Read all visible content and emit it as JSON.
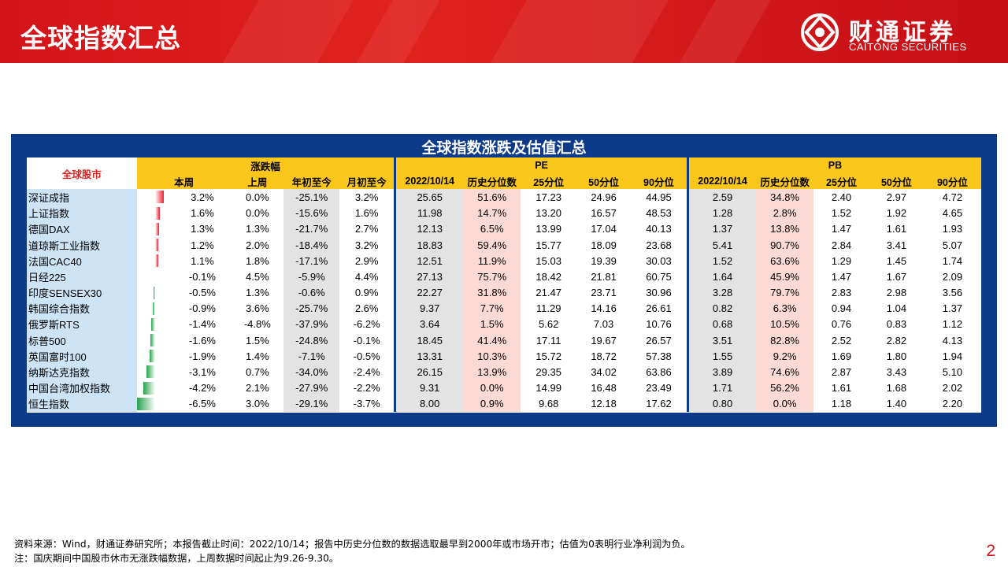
{
  "page_title": "全球指数汇总",
  "brand": {
    "name_cn": "财通证券",
    "name_en": "CAITONG SECURITIES"
  },
  "table_title": "全球指数涨跌及估值汇总",
  "headers": {
    "market": "全球股市",
    "change_group": "涨跌幅",
    "pe_group": "PE",
    "pb_group": "PB",
    "this_week": "本周",
    "last_week": "上周",
    "ytd": "年初至今",
    "mtd": "月初至今",
    "date": "2022/10/14",
    "hist_pct": "历史分位数",
    "p25": "25分位",
    "p50": "50分位",
    "p90": "90分位"
  },
  "rows": [
    {
      "name": "深证成指",
      "week_val": 3.2,
      "week": "3.2%",
      "last": "0.0%",
      "ytd": "-25.1%",
      "mtd": "3.2%",
      "pe": "25.65",
      "pe_pct": "51.6%",
      "pe25": "17.23",
      "pe50": "24.96",
      "pe90": "44.95",
      "pb": "2.59",
      "pb_pct": "34.8%",
      "pb25": "2.40",
      "pb50": "2.97",
      "pb90": "4.72"
    },
    {
      "name": "上证指数",
      "week_val": 1.6,
      "week": "1.6%",
      "last": "0.0%",
      "ytd": "-15.6%",
      "mtd": "1.6%",
      "pe": "11.98",
      "pe_pct": "14.7%",
      "pe25": "13.20",
      "pe50": "16.57",
      "pe90": "48.53",
      "pb": "1.28",
      "pb_pct": "2.8%",
      "pb25": "1.52",
      "pb50": "1.92",
      "pb90": "4.65"
    },
    {
      "name": "德国DAX",
      "week_val": 1.3,
      "week": "1.3%",
      "last": "1.3%",
      "ytd": "-21.7%",
      "mtd": "2.7%",
      "pe": "12.13",
      "pe_pct": "6.5%",
      "pe25": "13.99",
      "pe50": "17.04",
      "pe90": "40.13",
      "pb": "1.37",
      "pb_pct": "13.8%",
      "pb25": "1.47",
      "pb50": "1.61",
      "pb90": "1.93"
    },
    {
      "name": "道琼斯工业指数",
      "week_val": 1.2,
      "week": "1.2%",
      "last": "2.0%",
      "ytd": "-18.4%",
      "mtd": "3.2%",
      "pe": "18.83",
      "pe_pct": "59.4%",
      "pe25": "15.77",
      "pe50": "18.09",
      "pe90": "23.68",
      "pb": "5.41",
      "pb_pct": "90.7%",
      "pb25": "2.84",
      "pb50": "3.41",
      "pb90": "5.07"
    },
    {
      "name": "法国CAC40",
      "week_val": 1.1,
      "week": "1.1%",
      "last": "1.8%",
      "ytd": "-17.1%",
      "mtd": "2.9%",
      "pe": "12.51",
      "pe_pct": "11.9%",
      "pe25": "15.03",
      "pe50": "19.39",
      "pe90": "30.03",
      "pb": "1.52",
      "pb_pct": "63.6%",
      "pb25": "1.29",
      "pb50": "1.45",
      "pb90": "1.74"
    },
    {
      "name": "日经225",
      "week_val": -0.1,
      "week": "-0.1%",
      "last": "4.5%",
      "ytd": "-5.9%",
      "mtd": "4.4%",
      "pe": "27.13",
      "pe_pct": "75.7%",
      "pe25": "18.42",
      "pe50": "21.81",
      "pe90": "60.75",
      "pb": "1.64",
      "pb_pct": "45.9%",
      "pb25": "1.47",
      "pb50": "1.67",
      "pb90": "2.09"
    },
    {
      "name": "印度SENSEX30",
      "week_val": -0.5,
      "week": "-0.5%",
      "last": "1.3%",
      "ytd": "-0.6%",
      "mtd": "0.9%",
      "pe": "22.27",
      "pe_pct": "31.8%",
      "pe25": "21.47",
      "pe50": "23.71",
      "pe90": "30.96",
      "pb": "3.28",
      "pb_pct": "79.7%",
      "pb25": "2.83",
      "pb50": "2.98",
      "pb90": "3.56"
    },
    {
      "name": "韩国综合指数",
      "week_val": -0.9,
      "week": "-0.9%",
      "last": "3.6%",
      "ytd": "-25.7%",
      "mtd": "2.6%",
      "pe": "9.37",
      "pe_pct": "7.7%",
      "pe25": "11.29",
      "pe50": "14.16",
      "pe90": "26.61",
      "pb": "0.82",
      "pb_pct": "6.3%",
      "pb25": "0.94",
      "pb50": "1.04",
      "pb90": "1.37"
    },
    {
      "name": "俄罗斯RTS",
      "week_val": -1.4,
      "week": "-1.4%",
      "last": "-4.8%",
      "ytd": "-37.9%",
      "mtd": "-6.2%",
      "pe": "3.64",
      "pe_pct": "1.5%",
      "pe25": "5.62",
      "pe50": "7.03",
      "pe90": "10.76",
      "pb": "0.68",
      "pb_pct": "10.5%",
      "pb25": "0.76",
      "pb50": "0.83",
      "pb90": "1.12"
    },
    {
      "name": "标普500",
      "week_val": -1.6,
      "week": "-1.6%",
      "last": "1.5%",
      "ytd": "-24.8%",
      "mtd": "-0.1%",
      "pe": "18.45",
      "pe_pct": "41.4%",
      "pe25": "17.11",
      "pe50": "19.67",
      "pe90": "26.57",
      "pb": "3.51",
      "pb_pct": "82.8%",
      "pb25": "2.52",
      "pb50": "2.82",
      "pb90": "4.13"
    },
    {
      "name": "英国富时100",
      "week_val": -1.9,
      "week": "-1.9%",
      "last": "1.4%",
      "ytd": "-7.1%",
      "mtd": "-0.5%",
      "pe": "13.31",
      "pe_pct": "10.3%",
      "pe25": "15.72",
      "pe50": "18.72",
      "pe90": "57.38",
      "pb": "1.55",
      "pb_pct": "9.2%",
      "pb25": "1.69",
      "pb50": "1.80",
      "pb90": "1.94"
    },
    {
      "name": "纳斯达克指数",
      "week_val": -3.1,
      "week": "-3.1%",
      "last": "0.7%",
      "ytd": "-34.0%",
      "mtd": "-2.4%",
      "pe": "26.15",
      "pe_pct": "13.9%",
      "pe25": "29.35",
      "pe50": "34.02",
      "pe90": "63.86",
      "pb": "3.89",
      "pb_pct": "74.6%",
      "pb25": "2.87",
      "pb50": "3.43",
      "pb90": "5.10"
    },
    {
      "name": "中国台湾加权指数",
      "week_val": -4.2,
      "week": "-4.2%",
      "last": "2.1%",
      "ytd": "-27.9%",
      "mtd": "-2.2%",
      "pe": "9.31",
      "pe_pct": "0.0%",
      "pe25": "14.99",
      "pe50": "16.48",
      "pe90": "23.49",
      "pb": "1.71",
      "pb_pct": "56.2%",
      "pb25": "1.61",
      "pb50": "1.68",
      "pb90": "2.02"
    },
    {
      "name": "恒生指数",
      "week_val": -6.5,
      "week": "-6.5%",
      "last": "3.0%",
      "ytd": "-29.1%",
      "mtd": "-3.7%",
      "pe": "8.00",
      "pe_pct": "0.9%",
      "pe25": "9.68",
      "pe50": "12.18",
      "pe90": "17.62",
      "pb": "0.80",
      "pb_pct": "0.0%",
      "pb25": "1.18",
      "pb50": "1.40",
      "pb90": "2.20"
    }
  ],
  "notes": [
    "资料来源：Wind，财通证券研究所；本报告截止时间：2022/10/14；报告中历史分位数的数据选取最早到2000年或市场开市；估值为0表明行业净利润为负。",
    "注：国庆期间中国股市休市无涨跌幅数据，上周数据时间起止为9.26-9.30。"
  ],
  "page_number": "2",
  "colors": {
    "header_red": "#d3141a",
    "panel_navy": "#0e3a8a",
    "header_yellow": "#fbc71a",
    "up_red": "#f02030",
    "down_green": "#27a14b",
    "name_blue": "#cde4f7",
    "pct_pink": "#fbd9d5",
    "ytd_gray": "#e3e3e3"
  }
}
